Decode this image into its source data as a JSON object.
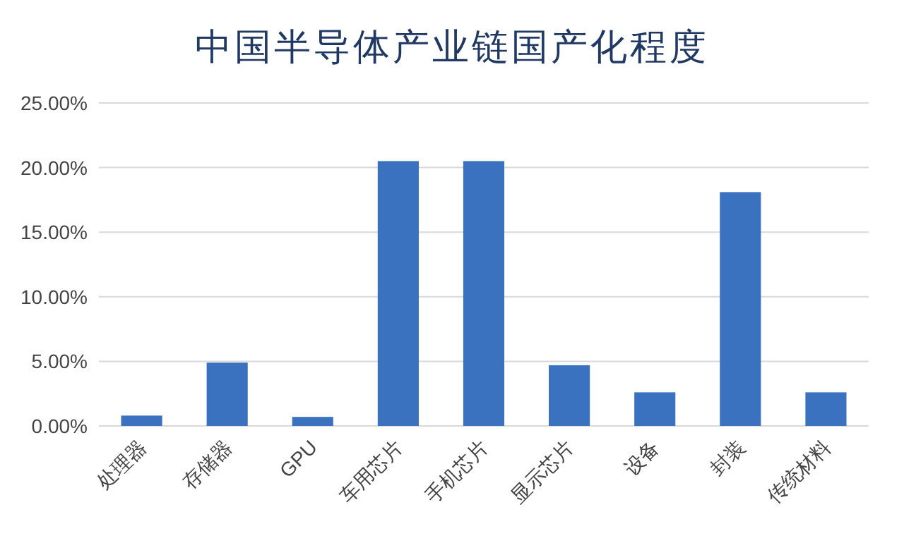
{
  "chart_data": {
    "type": "bar",
    "title": "中国半导体产业链国产化程度",
    "categories": [
      "处理器",
      "存储器",
      "GPU",
      "车用芯片",
      "手机芯片",
      "显示芯片",
      "设备",
      "封装",
      "传统材料"
    ],
    "values": [
      0.8,
      4.9,
      0.7,
      20.5,
      20.5,
      4.7,
      2.6,
      18.1,
      2.6
    ],
    "color": "#3a72c0",
    "ylim": [
      0,
      25
    ],
    "yticks": [
      {
        "value": 0,
        "label": "0.00%"
      },
      {
        "value": 5,
        "label": "5.00%"
      },
      {
        "value": 10,
        "label": "10.00%"
      },
      {
        "value": 15,
        "label": "15.00%"
      },
      {
        "value": 20,
        "label": "20.00%"
      },
      {
        "value": 25,
        "label": "25.00%"
      }
    ],
    "grid": "y"
  }
}
